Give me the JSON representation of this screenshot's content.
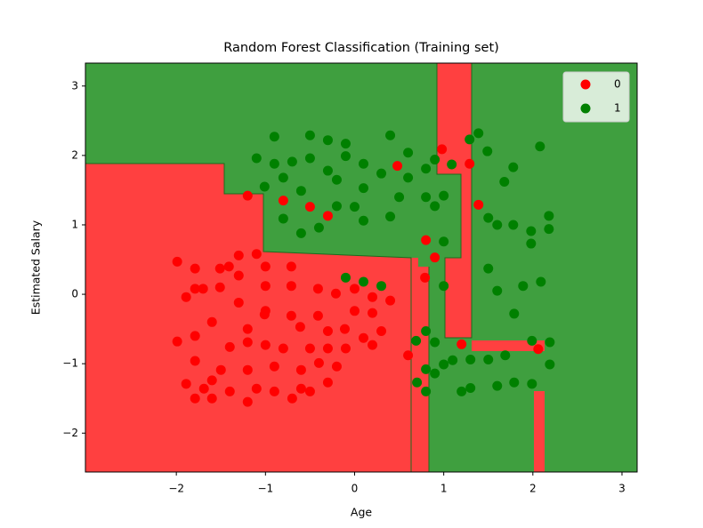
{
  "chart_data": {
    "type": "scatter",
    "title": "Random Forest Classification (Training set)",
    "x_label": "Age",
    "y_label": "Estimated Salary",
    "xlim": [
      -3.02,
      3.17
    ],
    "ylim": [
      -2.56,
      3.33
    ],
    "xticks": [
      {
        "value": -2,
        "label": "−2"
      },
      {
        "value": -1,
        "label": "−1"
      },
      0,
      1,
      2,
      3
    ],
    "yticks": [
      {
        "value": -2,
        "label": "−2"
      },
      {
        "value": -1,
        "label": "−1"
      },
      0,
      1,
      2,
      3
    ],
    "legend": "upper right",
    "series": [
      {
        "name": "0",
        "color": "#ff0000",
        "x": [
          -1.99,
          -1.79,
          -1.51,
          -1.3,
          -1.1,
          -1.0,
          -0.71,
          -1.41,
          -1.79,
          -1.51,
          -1.3,
          -1.0,
          -0.71,
          -1.89,
          -1.7,
          -0.41,
          -0.21,
          0.0,
          0.2,
          0.4,
          -1.3,
          -1.0,
          -0.71,
          -0.41,
          0.0,
          0.2,
          -1.6,
          -1.2,
          -1.01,
          -0.61,
          -0.3,
          -0.11,
          0.3,
          0.1,
          -1.99,
          -1.79,
          -1.4,
          -1.2,
          -1.0,
          -0.8,
          -0.5,
          -0.3,
          -0.1,
          0.2,
          -1.79,
          -1.5,
          -1.2,
          -0.9,
          -0.6,
          -0.4,
          -0.2,
          -1.89,
          -1.69,
          -1.4,
          -1.1,
          -0.9,
          -0.6,
          -0.3,
          -1.6,
          -1.79,
          -1.6,
          -1.2,
          -0.7,
          -0.5,
          0.6,
          0.79,
          0.9,
          0.8,
          -0.8,
          -0.5,
          -0.3,
          -1.2,
          0.48,
          0.98,
          1.29,
          1.39,
          2.06,
          1.2
        ],
        "y": [
          0.47,
          0.37,
          0.37,
          0.56,
          0.58,
          0.4,
          0.4,
          0.4,
          0.08,
          0.1,
          0.27,
          0.12,
          0.12,
          -0.04,
          0.08,
          0.08,
          0.01,
          0.08,
          -0.04,
          -0.09,
          -0.12,
          -0.24,
          -0.31,
          -0.31,
          -0.24,
          -0.27,
          -0.4,
          -0.5,
          -0.29,
          -0.47,
          -0.53,
          -0.5,
          -0.53,
          -0.63,
          -0.68,
          -0.6,
          -0.76,
          -0.69,
          -0.73,
          -0.78,
          -0.78,
          -0.78,
          -0.78,
          -0.73,
          -0.96,
          -1.09,
          -1.09,
          -1.04,
          -1.09,
          -0.99,
          -1.04,
          -1.29,
          -1.36,
          -1.4,
          -1.36,
          -1.4,
          -1.36,
          -1.27,
          -1.24,
          -1.5,
          -1.5,
          -1.55,
          -1.5,
          -1.4,
          -0.88,
          0.24,
          0.53,
          0.78,
          1.35,
          1.26,
          1.13,
          1.42,
          1.85,
          2.09,
          1.88,
          1.29,
          -0.79,
          -0.72
        ]
      },
      {
        "name": "1",
        "color": "#008000",
        "x": [
          -0.9,
          -0.5,
          -0.3,
          -0.1,
          0.4,
          0.6,
          0.9,
          1.29,
          1.39,
          1.49,
          -0.9,
          -0.7,
          -0.5,
          -0.3,
          -0.1,
          0.1,
          0.3,
          0.6,
          0.8,
          1.09,
          -1.1,
          -1.01,
          -0.8,
          -0.6,
          -0.2,
          0.1,
          0.5,
          0.8,
          1.0,
          -0.8,
          -0.6,
          -0.4,
          -0.2,
          0.0,
          0.4,
          0.1,
          0.9,
          1.0,
          1.5,
          1.6,
          1.78,
          1.98,
          2.18,
          2.18,
          1.68,
          1.78,
          2.08,
          -0.1,
          0.1,
          0.3,
          1.0,
          1.5,
          1.6,
          1.79,
          1.89,
          2.09,
          1.98,
          0.69,
          0.8,
          0.9,
          1.1,
          1.3,
          1.5,
          1.69,
          1.99,
          2.19,
          2.19,
          1.99,
          1.79,
          1.6,
          1.3,
          1.2,
          0.8,
          0.7,
          0.8,
          0.9,
          1.0
        ],
        "y": [
          2.27,
          2.29,
          2.22,
          2.17,
          2.29,
          2.04,
          1.94,
          2.23,
          2.32,
          2.06,
          1.88,
          1.91,
          1.96,
          1.78,
          1.99,
          1.88,
          1.74,
          1.68,
          1.81,
          1.87,
          1.96,
          1.55,
          1.68,
          1.49,
          1.65,
          1.53,
          1.4,
          1.4,
          1.42,
          1.09,
          0.88,
          0.96,
          1.27,
          1.26,
          1.12,
          1.06,
          1.27,
          0.76,
          1.1,
          1.0,
          1.0,
          0.91,
          1.13,
          0.94,
          1.62,
          1.83,
          2.13,
          0.24,
          0.18,
          0.12,
          0.12,
          0.37,
          0.05,
          -0.28,
          0.12,
          0.18,
          0.73,
          -0.67,
          -0.53,
          -0.69,
          -0.95,
          -0.94,
          -0.94,
          -0.88,
          -0.67,
          -0.69,
          -1.01,
          -1.29,
          -1.27,
          -1.32,
          -1.35,
          -1.4,
          -1.08,
          -1.27,
          -1.4,
          -1.14,
          -1.01
        ]
      }
    ]
  }
}
